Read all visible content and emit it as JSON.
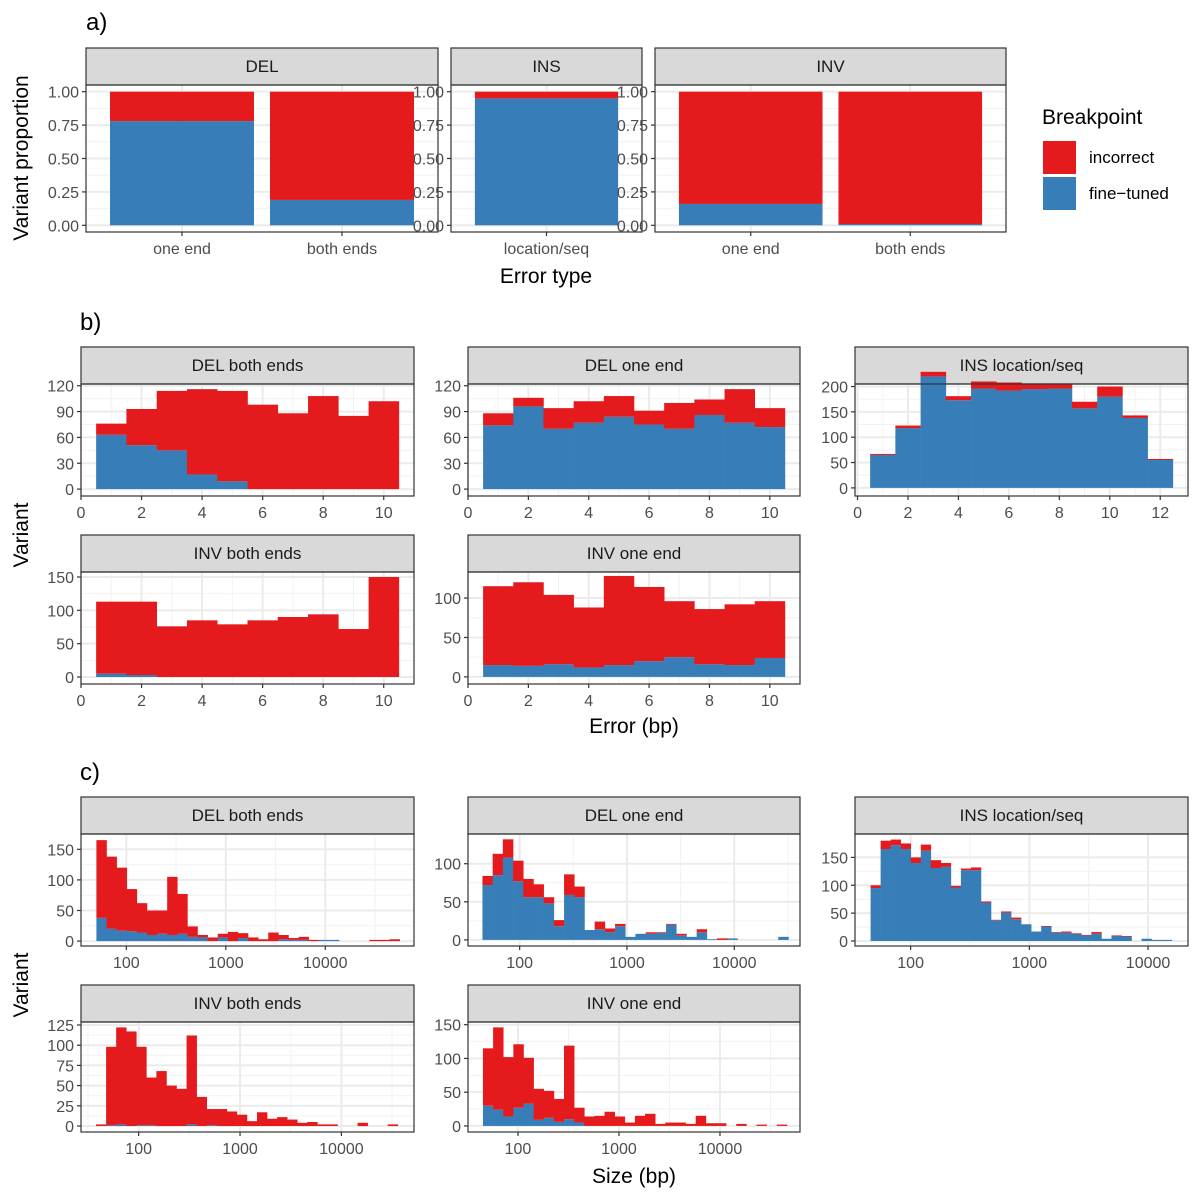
{
  "panel_labels": {
    "a": "a)",
    "b": "b)",
    "c": "c)"
  },
  "legend": {
    "title": "Breakpoint",
    "items": [
      {
        "label": "incorrect",
        "color": "#E41A1C"
      },
      {
        "label": "fine−tuned",
        "color": "#377EB8"
      }
    ]
  },
  "chart_data": [
    {
      "id": "a",
      "type": "bar",
      "stacked": true,
      "ylabel": "Variant proportion",
      "xlabel": "Error type",
      "ylim": [
        0,
        1
      ],
      "yticks": [
        "0.00",
        "0.25",
        "0.50",
        "0.75",
        "1.00"
      ],
      "grid": true,
      "legend_position": "right",
      "facets": [
        {
          "strip": "DEL",
          "categories": [
            "one end",
            "both ends"
          ],
          "fine_tuned": [
            0.78,
            0.19
          ],
          "incorrect": [
            0.22,
            0.81
          ]
        },
        {
          "strip": "INS",
          "categories": [
            "location/seq"
          ],
          "fine_tuned": [
            0.95
          ],
          "incorrect": [
            0.05
          ]
        },
        {
          "strip": "INV",
          "categories": [
            "one end",
            "both ends"
          ],
          "fine_tuned": [
            0.16,
            0.01
          ],
          "incorrect": [
            0.84,
            0.99
          ]
        }
      ]
    },
    {
      "id": "b",
      "type": "bar",
      "subtype": "histogram",
      "stacked": true,
      "ylabel": "Variant",
      "xlabel": "Error (bp)",
      "grid": true,
      "facets": [
        {
          "strip": "DEL both ends",
          "bin_range": [
            0.5,
            10.5
          ],
          "xlim": [
            0,
            11
          ],
          "xticks": [
            0,
            2,
            4,
            6,
            8,
            10
          ],
          "ylim": [
            -8,
            122
          ],
          "yticks": [
            0,
            30,
            60,
            90,
            120
          ],
          "total": [
            76,
            93,
            114,
            116,
            114,
            98,
            88,
            108,
            85,
            102
          ],
          "fine_tuned": [
            63,
            51,
            45,
            17,
            9,
            0,
            0,
            0,
            0,
            0
          ]
        },
        {
          "strip": "DEL one end",
          "bin_range": [
            0.5,
            10.5
          ],
          "xlim": [
            0,
            11
          ],
          "xticks": [
            0,
            2,
            4,
            6,
            8,
            10
          ],
          "ylim": [
            -8,
            122
          ],
          "yticks": [
            0,
            30,
            60,
            90,
            120
          ],
          "total": [
            88,
            106,
            94,
            102,
            108,
            91,
            100,
            104,
            116,
            94
          ],
          "fine_tuned": [
            74,
            96,
            70,
            77,
            84,
            75,
            70,
            86,
            77,
            72
          ]
        },
        {
          "strip": "INS location/seq",
          "bin_range": [
            0.5,
            12.5
          ],
          "xlim": [
            -0.1,
            13.1
          ],
          "xticks": [
            0,
            2,
            4,
            6,
            8,
            10,
            12
          ],
          "ylim": [
            -16,
            205
          ],
          "yticks": [
            0,
            50,
            100,
            150,
            200
          ],
          "total": [
            67,
            123,
            229,
            181,
            210,
            208,
            206,
            204,
            170,
            200,
            143,
            57
          ],
          "fine_tuned": [
            65,
            118,
            220,
            173,
            196,
            192,
            195,
            196,
            157,
            180,
            138,
            55
          ]
        },
        {
          "strip": "INV both ends",
          "bin_range": [
            0.5,
            10.5
          ],
          "xlim": [
            0,
            11
          ],
          "xticks": [
            0,
            2,
            4,
            6,
            8,
            10
          ],
          "ylim": [
            -10.5,
            157.5
          ],
          "yticks": [
            0,
            50,
            100,
            150
          ],
          "total": [
            113,
            113,
            76,
            85,
            79,
            85,
            90,
            94,
            72,
            150
          ],
          "fine_tuned": [
            5,
            3,
            0,
            0,
            0,
            0,
            0,
            0,
            0,
            0
          ]
        },
        {
          "strip": "INV one end",
          "bin_range": [
            0.5,
            10.5
          ],
          "xlim": [
            0,
            11
          ],
          "xticks": [
            0,
            2,
            4,
            6,
            8,
            10
          ],
          "ylim": [
            -9,
            133
          ],
          "yticks": [
            0,
            50,
            100
          ],
          "total": [
            115,
            120,
            104,
            88,
            128,
            114,
            96,
            86,
            92,
            96
          ],
          "fine_tuned": [
            15,
            14,
            16,
            12,
            15,
            20,
            25,
            16,
            15,
            24
          ]
        }
      ]
    },
    {
      "id": "c",
      "type": "bar",
      "subtype": "histogram",
      "stacked": true,
      "x_scale": "log10",
      "ylabel": "Variant",
      "xlabel": "Size (bp)",
      "grid": true,
      "facets": [
        {
          "strip": "DEL both ends",
          "bin_range": [
            50,
            56000
          ],
          "xlim": [
            35,
            78000
          ],
          "xticks": [
            100,
            1000,
            10000
          ],
          "ylim": [
            -8,
            175
          ],
          "yticks": [
            0,
            50,
            100,
            150
          ],
          "total": [
            165,
            138,
            120,
            85,
            62,
            50,
            50,
            105,
            77,
            24,
            10,
            6,
            12,
            15,
            13,
            6,
            3,
            14,
            10,
            5,
            7,
            2,
            2,
            2,
            0,
            0,
            0,
            2,
            2,
            3
          ],
          "fine_tuned": [
            38,
            20,
            17,
            16,
            14,
            10,
            12,
            10,
            12,
            7,
            6,
            0,
            6,
            0,
            5,
            0,
            0,
            0,
            3,
            2,
            2,
            0,
            2,
            2,
            0,
            0,
            0,
            0,
            0,
            0
          ]
        },
        {
          "strip": "DEL one end",
          "bin_range": [
            45,
            32000
          ],
          "xlim": [
            33,
            41000
          ],
          "xticks": [
            100,
            1000,
            10000
          ],
          "ylim": [
            -8,
            139
          ],
          "yticks": [
            0,
            50,
            100
          ],
          "total": [
            84,
            113,
            132,
            104,
            80,
            73,
            56,
            26,
            86,
            70,
            13,
            24,
            15,
            21,
            4,
            8,
            10,
            10,
            21,
            8,
            4,
            14,
            1,
            2,
            2,
            0,
            0,
            0,
            0,
            4
          ],
          "fine_tuned": [
            72,
            85,
            108,
            77,
            56,
            56,
            48,
            18,
            59,
            56,
            13,
            14,
            10,
            18,
            4,
            8,
            8,
            9,
            20,
            6,
            4,
            10,
            1,
            0,
            2,
            0,
            0,
            0,
            0,
            4
          ]
        },
        {
          "strip": "INS location/seq",
          "bin_range": [
            46,
            15800
          ],
          "xlim": [
            34,
            21700
          ],
          "xticks": [
            100,
            1000,
            10000
          ],
          "ylim": [
            -9,
            192
          ],
          "yticks": [
            0,
            50,
            100,
            150
          ],
          "total": [
            100,
            180,
            182,
            175,
            150,
            173,
            145,
            140,
            99,
            130,
            132,
            71,
            38,
            53,
            42,
            30,
            17,
            27,
            16,
            17,
            14,
            11,
            16,
            4,
            10,
            9,
            0,
            4,
            2,
            2
          ],
          "fine_tuned": [
            95,
            165,
            172,
            165,
            140,
            162,
            131,
            133,
            96,
            127,
            127,
            69,
            37,
            51,
            39,
            30,
            17,
            26,
            15,
            15,
            13,
            10,
            13,
            4,
            9,
            8,
            0,
            4,
            2,
            2
          ]
        },
        {
          "strip": "INV both ends",
          "bin_range": [
            38,
            36000
          ],
          "xlim": [
            27,
            52000
          ],
          "xticks": [
            100,
            1000,
            10000
          ],
          "ylim": [
            -7.4,
            128.7
          ],
          "yticks": [
            0,
            25,
            50,
            75,
            100,
            125
          ],
          "total": [
            2,
            98,
            122,
            117,
            98,
            60,
            68,
            50,
            46,
            112,
            36,
            21,
            21,
            18,
            14,
            6,
            17,
            9,
            11,
            8,
            4,
            5,
            2,
            2,
            0,
            0,
            4,
            0,
            0,
            2
          ],
          "fine_tuned": [
            0,
            1,
            2,
            0,
            1,
            1,
            0,
            0,
            0,
            2,
            0,
            1,
            0,
            0,
            0,
            0,
            0,
            0,
            0,
            0,
            0,
            0,
            0,
            0,
            0,
            0,
            0,
            0,
            0,
            0
          ]
        },
        {
          "strip": "INV one end",
          "bin_range": [
            45,
            46000
          ],
          "xlim": [
            32,
            62000
          ],
          "xticks": [
            100,
            1000,
            10000
          ],
          "ylim": [
            -9,
            154
          ],
          "yticks": [
            0,
            50,
            100,
            150
          ],
          "total": [
            115,
            146,
            102,
            121,
            101,
            55,
            52,
            40,
            119,
            27,
            14,
            15,
            21,
            14,
            5,
            15,
            18,
            3,
            5,
            5,
            3,
            15,
            4,
            4,
            0,
            3,
            0,
            2,
            0,
            2
          ],
          "fine_tuned": [
            30,
            24,
            14,
            27,
            33,
            9,
            12,
            6,
            10,
            5,
            0,
            0,
            0,
            0,
            0,
            0,
            0,
            0,
            0,
            0,
            0,
            0,
            0,
            0,
            0,
            0,
            0,
            0,
            0,
            0
          ]
        }
      ]
    }
  ]
}
